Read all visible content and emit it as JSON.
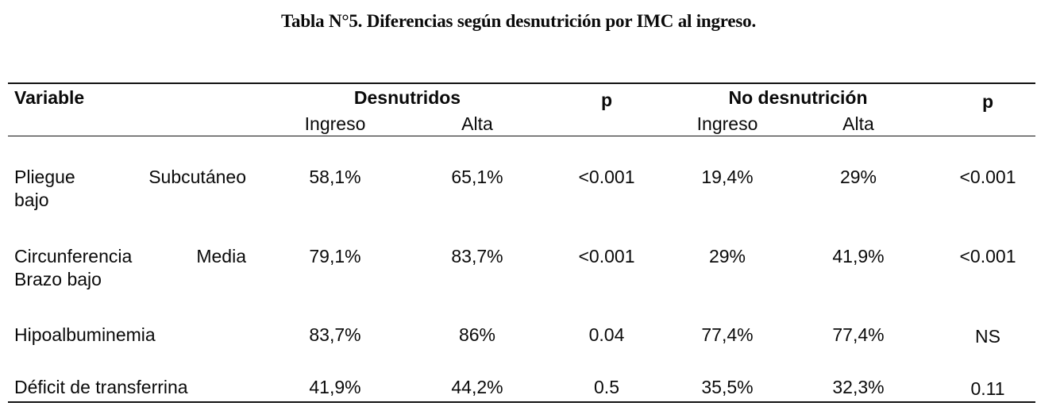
{
  "title": "Tabla N°5. Diferencias según desnutrición por IMC al ingreso.",
  "headers": {
    "variable": "Variable",
    "group1": "Desnutridos",
    "p1": "p",
    "group2": "No desnutrición",
    "p2": "p",
    "ingreso1": "Ingreso",
    "alta1": "Alta",
    "ingreso2": "Ingreso",
    "alta2": "Alta"
  },
  "rows": [
    {
      "variable_line1_a": "Pliegue",
      "variable_line1_b": "Subcutáneo",
      "variable_line2": "bajo",
      "ingreso1": "58,1%",
      "alta1": "65,1%",
      "p1": "<0.001",
      "ingreso2": "19,4%",
      "alta2": "29%",
      "p2": "<0.001"
    },
    {
      "variable_line1_a": "Circunferencia",
      "variable_line1_b": "Media",
      "variable_line2": "Brazo bajo",
      "ingreso1": "79,1%",
      "alta1": "83,7%",
      "p1": "<0.001",
      "ingreso2": "29%",
      "alta2": "41,9%",
      "p2": "<0.001"
    },
    {
      "variable": "Hipoalbuminemia",
      "ingreso1": "83,7%",
      "alta1": "86%",
      "p1": "0.04",
      "ingreso2": "77,4%",
      "alta2": "77,4%",
      "p2": "NS"
    },
    {
      "variable": "Déficit de transferrina",
      "ingreso1": "41,9%",
      "alta1": "44,2%",
      "p1": "0.5",
      "ingreso2": "35,5%",
      "alta2": "32,3%",
      "p2": "0.11"
    }
  ]
}
